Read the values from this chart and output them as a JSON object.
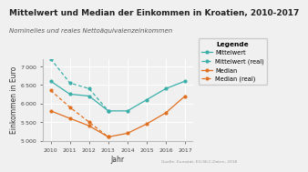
{
  "title": "Mittelwert und Median der Einkommen in Kroatien, 2010-2017",
  "subtitle": "Nominelles und reales Nettoäquivalenzeinkommen",
  "source": "Quelle: Eurostat, EU-SILC-Daten, 2018",
  "xlabel": "Jahr",
  "ylabel": "Einkommen in Euro",
  "years": [
    2010,
    2011,
    2012,
    2013,
    2014,
    2015,
    2016,
    2017
  ],
  "mittelwert": [
    6600,
    6250,
    6200,
    5800,
    5800,
    6100,
    6400,
    6600
  ],
  "mittelwert_real": [
    7200,
    6550,
    6400,
    5800,
    null,
    null,
    null,
    null
  ],
  "median": [
    5800,
    5600,
    5400,
    5100,
    5200,
    5450,
    5750,
    6200
  ],
  "median_real": [
    6350,
    5900,
    5500,
    5100,
    null,
    null,
    null,
    null
  ],
  "color_mittelwert": "#3aafa9",
  "color_median": "#e07020",
  "ylim": [
    5000,
    7200
  ],
  "yticks": [
    5000,
    5500,
    6000,
    6500,
    7000
  ],
  "legend_labels": [
    "Mittelwert",
    "Mittelwert (real)",
    "Median",
    "Median (real)"
  ],
  "background_color": "#f0f0f0",
  "grid_color": "#ffffff",
  "title_fontsize": 6.5,
  "subtitle_fontsize": 5.0,
  "axis_label_fontsize": 5.5,
  "tick_fontsize": 4.5,
  "legend_fontsize": 4.8,
  "source_fontsize": 3.2
}
